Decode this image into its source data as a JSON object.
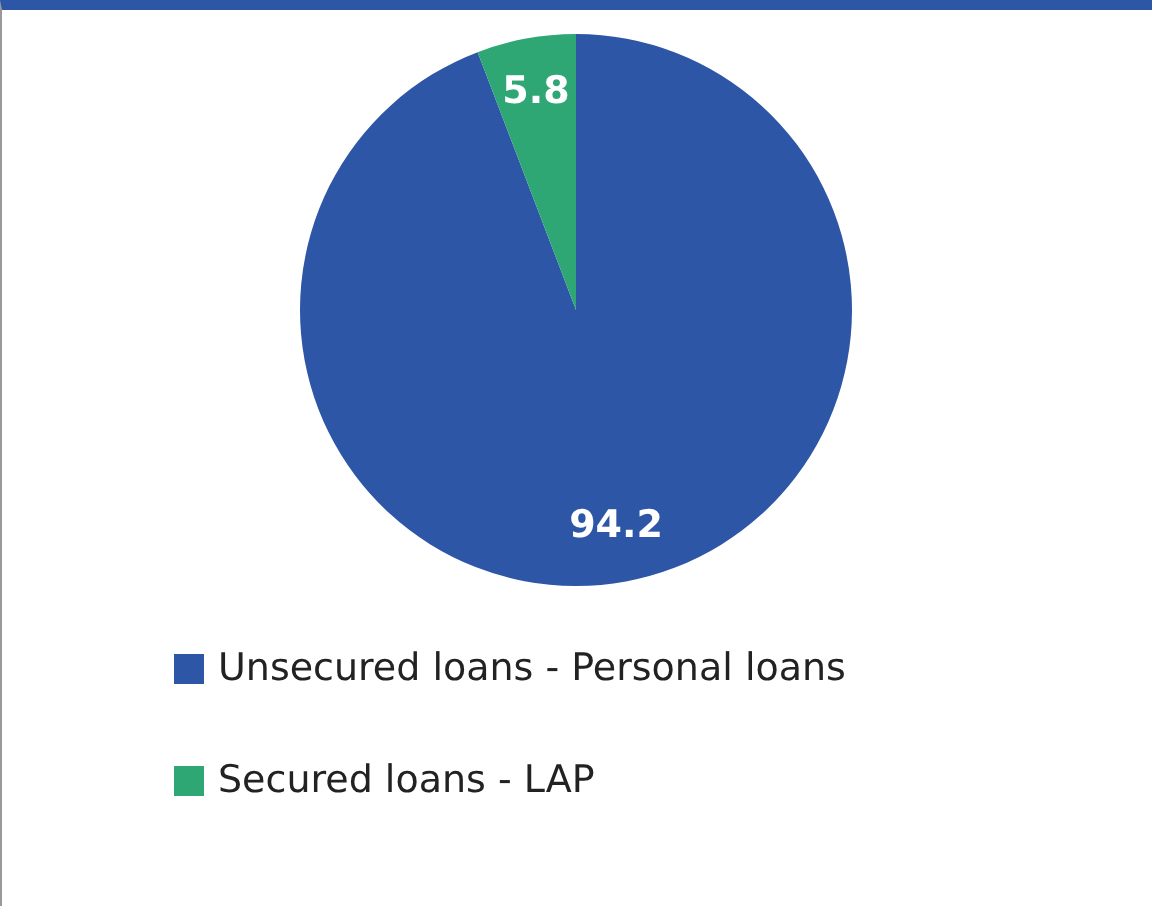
{
  "chart_data": {
    "type": "pie",
    "categories": [
      "Unsecured loans - Personal loans",
      "Secured loans - LAP"
    ],
    "values": [
      94.2,
      5.8
    ],
    "colors": [
      "#2e56a6",
      "#2ea774"
    ],
    "data_labels": true,
    "legend": "bottom"
  }
}
